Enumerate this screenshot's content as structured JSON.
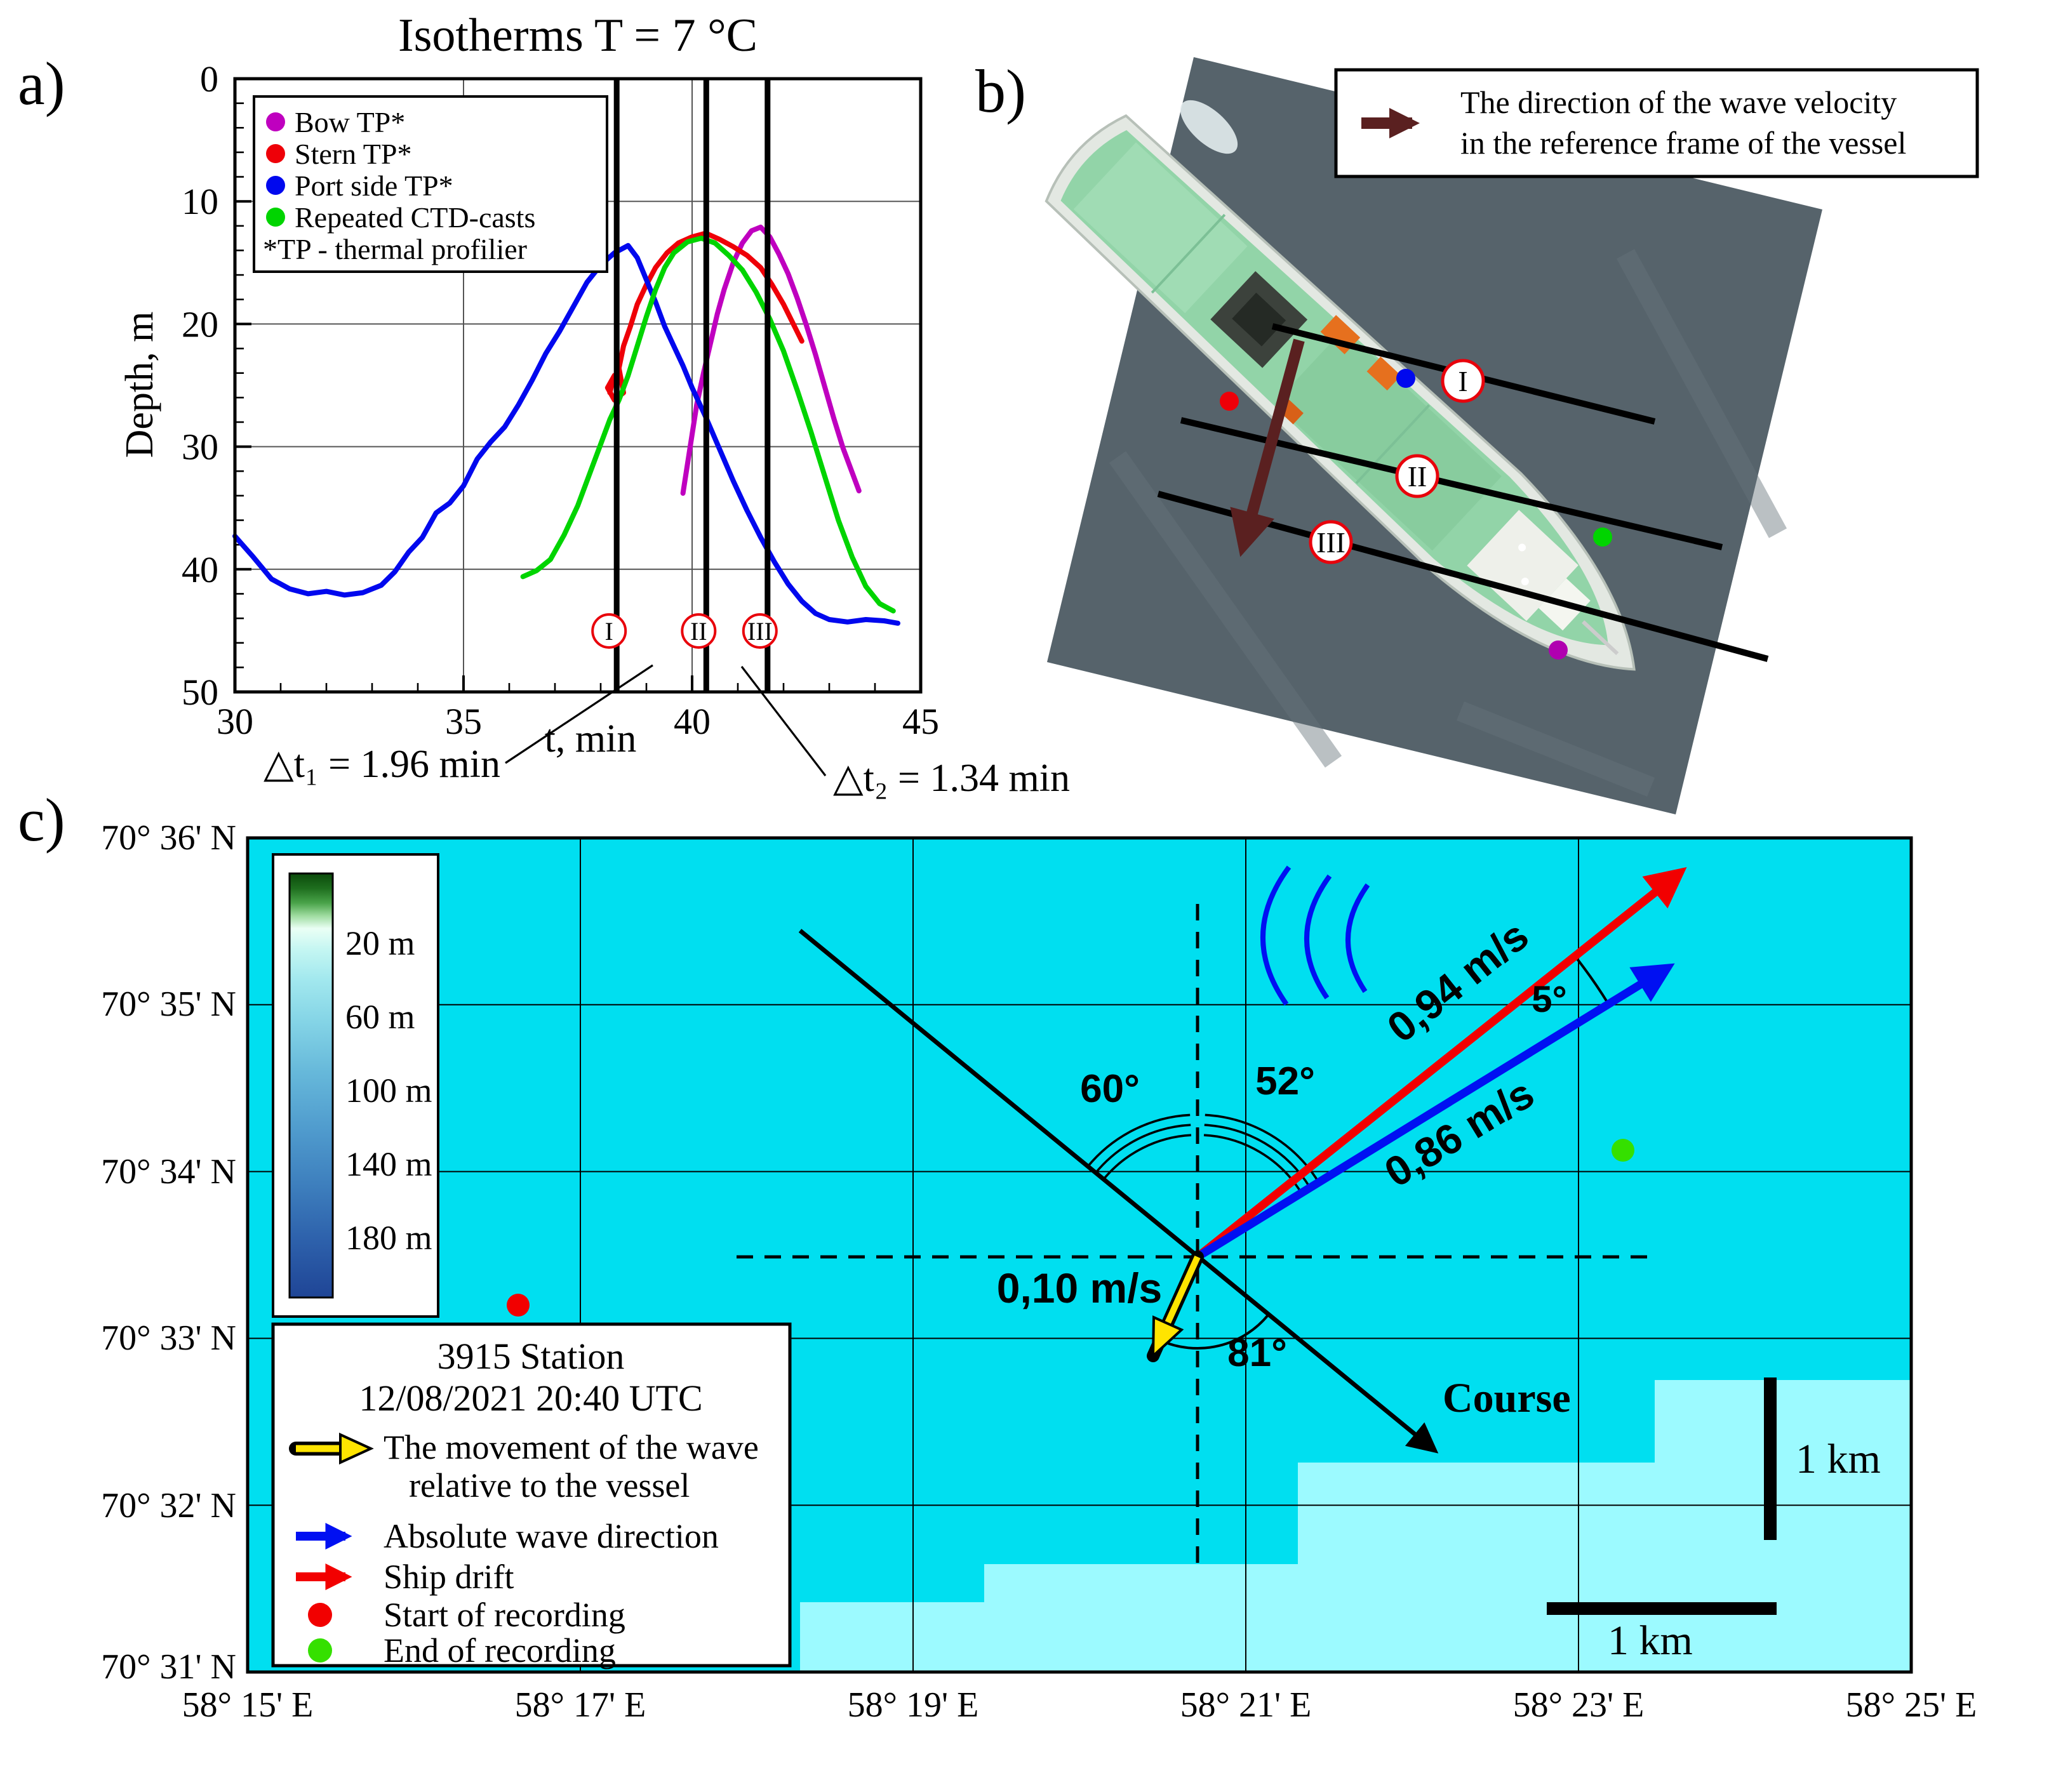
{
  "panels": {
    "a_label": "a)",
    "b_label": "b)",
    "c_label": "c)"
  },
  "chart_data": [
    {
      "type": "line",
      "panel": "a",
      "title": "Isotherms T = 7 °C",
      "xlabel": "t, min",
      "ylabel": "Depth, m",
      "xlim": [
        30,
        45
      ],
      "ylim": [
        0,
        50
      ],
      "y_axis": "depth increases downward",
      "xticks": [
        30,
        35,
        40,
        45
      ],
      "yticks": [
        0,
        10,
        20,
        30,
        40,
        50
      ],
      "series": [
        {
          "name": "Bow TP*",
          "color": "#bf00bf",
          "points": [
            [
              39.8,
              33.8
            ],
            [
              39.9,
              31.4
            ],
            [
              40.0,
              29.0
            ],
            [
              40.1,
              26.6
            ],
            [
              40.25,
              24.0
            ],
            [
              40.4,
              21.6
            ],
            [
              40.55,
              19.2
            ],
            [
              40.7,
              17.2
            ],
            [
              40.9,
              15.0
            ],
            [
              41.1,
              13.4
            ],
            [
              41.3,
              12.4
            ],
            [
              41.5,
              12.1
            ],
            [
              41.7,
              12.9
            ],
            [
              41.9,
              14.3
            ],
            [
              42.1,
              15.9
            ],
            [
              42.3,
              17.9
            ],
            [
              42.5,
              20.1
            ],
            [
              42.7,
              22.5
            ],
            [
              42.9,
              25.1
            ],
            [
              43.1,
              27.7
            ],
            [
              43.3,
              30.1
            ],
            [
              43.5,
              32.1
            ],
            [
              43.65,
              33.6
            ]
          ]
        },
        {
          "name": "Stern TP*",
          "color": "#ee0008",
          "points": [
            [
              38.2,
              25.6
            ],
            [
              38.3,
              24.2
            ],
            [
              38.15,
              25.2
            ],
            [
              38.3,
              26.2
            ],
            [
              38.5,
              25.6
            ],
            [
              38.4,
              23.6
            ],
            [
              38.5,
              21.8
            ],
            [
              38.65,
              20.2
            ],
            [
              38.8,
              18.4
            ],
            [
              39.0,
              16.8
            ],
            [
              39.2,
              15.4
            ],
            [
              39.45,
              14.2
            ],
            [
              39.7,
              13.4
            ],
            [
              40.0,
              12.9
            ],
            [
              40.3,
              12.6
            ],
            [
              40.6,
              13.1
            ],
            [
              40.9,
              13.7
            ],
            [
              41.2,
              14.4
            ],
            [
              41.5,
              15.4
            ],
            [
              41.75,
              16.8
            ],
            [
              42.0,
              18.4
            ],
            [
              42.2,
              19.9
            ],
            [
              42.4,
              21.4
            ]
          ]
        },
        {
          "name": "Port side TP*",
          "color": "#0008ee",
          "points": [
            [
              30.0,
              37.3
            ],
            [
              30.4,
              39.0
            ],
            [
              30.8,
              40.8
            ],
            [
              31.2,
              41.6
            ],
            [
              31.6,
              42.0
            ],
            [
              32.0,
              41.8
            ],
            [
              32.4,
              42.1
            ],
            [
              32.8,
              41.9
            ],
            [
              33.2,
              41.3
            ],
            [
              33.5,
              40.2
            ],
            [
              33.8,
              38.6
            ],
            [
              34.1,
              37.4
            ],
            [
              34.4,
              35.4
            ],
            [
              34.7,
              34.6
            ],
            [
              35.0,
              33.2
            ],
            [
              35.3,
              31.0
            ],
            [
              35.6,
              29.6
            ],
            [
              35.9,
              28.4
            ],
            [
              36.2,
              26.6
            ],
            [
              36.5,
              24.6
            ],
            [
              36.8,
              22.4
            ],
            [
              37.1,
              20.6
            ],
            [
              37.4,
              18.6
            ],
            [
              37.7,
              16.6
            ],
            [
              38.0,
              15.2
            ],
            [
              38.3,
              14.2
            ],
            [
              38.6,
              13.6
            ],
            [
              38.8,
              14.6
            ],
            [
              39.0,
              16.4
            ],
            [
              39.2,
              18.2
            ],
            [
              39.4,
              20.2
            ],
            [
              39.6,
              21.8
            ],
            [
              39.8,
              23.4
            ],
            [
              40.0,
              25.2
            ],
            [
              40.3,
              27.6
            ],
            [
              40.6,
              30.2
            ],
            [
              40.9,
              32.8
            ],
            [
              41.2,
              35.2
            ],
            [
              41.5,
              37.4
            ],
            [
              41.8,
              39.4
            ],
            [
              42.1,
              41.2
            ],
            [
              42.4,
              42.6
            ],
            [
              42.7,
              43.6
            ],
            [
              43.0,
              44.1
            ],
            [
              43.4,
              44.3
            ],
            [
              43.8,
              44.1
            ],
            [
              44.2,
              44.2
            ],
            [
              44.5,
              44.4
            ]
          ]
        },
        {
          "name": "Repeated CTD-casts",
          "color": "#00d400",
          "points": [
            [
              36.3,
              40.6
            ],
            [
              36.6,
              40.1
            ],
            [
              36.9,
              39.2
            ],
            [
              37.2,
              37.2
            ],
            [
              37.5,
              34.8
            ],
            [
              37.8,
              31.8
            ],
            [
              38.0,
              29.8
            ],
            [
              38.2,
              27.8
            ],
            [
              38.4,
              26.2
            ],
            [
              38.6,
              24.2
            ],
            [
              38.8,
              21.8
            ],
            [
              39.0,
              19.4
            ],
            [
              39.2,
              17.2
            ],
            [
              39.4,
              15.4
            ],
            [
              39.6,
              14.2
            ],
            [
              39.9,
              13.3
            ],
            [
              40.2,
              13.0
            ],
            [
              40.5,
              13.4
            ],
            [
              40.8,
              14.4
            ],
            [
              41.1,
              15.6
            ],
            [
              41.4,
              17.4
            ],
            [
              41.7,
              19.6
            ],
            [
              42.0,
              22.2
            ],
            [
              42.3,
              25.4
            ],
            [
              42.6,
              28.8
            ],
            [
              42.9,
              32.4
            ],
            [
              43.2,
              36.0
            ],
            [
              43.5,
              39.0
            ],
            [
              43.8,
              41.4
            ],
            [
              44.1,
              42.8
            ],
            [
              44.4,
              43.4
            ]
          ]
        }
      ],
      "legend_note": "*TP - thermal profilier",
      "events": [
        {
          "x": 38.35,
          "label": "I"
        },
        {
          "x": 40.31,
          "label": "II"
        },
        {
          "x": 41.65,
          "label": "III"
        }
      ],
      "annotations": [
        "△t₁ = 1.96 min",
        "△t₂ = 1.34 min"
      ]
    },
    {
      "type": "scatter",
      "panel": "c",
      "title": "Station map with wave and drift vectors",
      "x_tick_labels": [
        "58° 15' E",
        "58° 17' E",
        "58° 19' E",
        "58° 21' E",
        "58° 23' E",
        "58° 25' E"
      ],
      "y_tick_labels": [
        "70° 36' N",
        "70° 35' N",
        "70° 34' N",
        "70° 33' N",
        "70° 32' N",
        "70° 31' N"
      ],
      "depth_scale_m": [
        "20 m",
        "60 m",
        "100 m",
        "140 m",
        "180 m"
      ],
      "vectors": [
        {
          "name": "Ship drift",
          "speed_label": "0,94 m/s",
          "color": "#f20000"
        },
        {
          "name": "Absolute wave direction",
          "speed_label": "0,86 m/s",
          "color": "#0010f2"
        },
        {
          "name": "Movement of the wave relative to the vessel",
          "speed_label": "0,10 m/s",
          "color": "#ffe400"
        }
      ],
      "angles": {
        "drift_vs_wave": "5°",
        "vertical_vs_wave": "52°",
        "course_vs_vertical": "60°",
        "relative_vs_course": "81°"
      }
    }
  ],
  "panel_b": {
    "legend": {
      "lines": [
        "The direction of the wave velocity",
        "in the reference frame of the vessel"
      ]
    },
    "transects": [
      "I",
      "II",
      "III"
    ]
  },
  "panel_c": {
    "lat_labels": [
      "70° 36' N",
      "70° 35' N",
      "70° 34' N",
      "70° 33' N",
      "70° 32' N",
      "70° 31' N"
    ],
    "lon_labels": [
      "58° 15' E",
      "58° 17' E",
      "58° 19' E",
      "58° 21' E",
      "58° 23' E",
      "58° 25' E"
    ],
    "colorbar_labels": [
      "20 m",
      "60 m",
      "100 m",
      "140 m",
      "180 m"
    ],
    "vector_labels": {
      "drift": "0,94 m/s",
      "wave": "0,86 m/s",
      "relative": "0,10 m/s"
    },
    "angle_labels": {
      "drift_wave": "5°",
      "vertical_wave": "52°",
      "course_vertical": "60°",
      "relative_course": "81°"
    },
    "course_label": "Course",
    "station_legend": {
      "title": "3915 Station",
      "datetime": "12/08/2021 20:40 UTC",
      "items": [
        {
          "icon": "yellow-arrow",
          "lines": [
            "The movement of the wave",
            "relative to the vessel"
          ]
        },
        {
          "icon": "blue-arrow",
          "lines": [
            "Absolute wave direction"
          ]
        },
        {
          "icon": "red-arrow",
          "lines": [
            "Ship drift"
          ]
        },
        {
          "icon": "red-dot",
          "lines": [
            "Start of recording"
          ]
        },
        {
          "icon": "green-dot",
          "lines": [
            "End of recording"
          ]
        }
      ]
    },
    "scale_v": "1 km",
    "scale_h": "1 km"
  }
}
